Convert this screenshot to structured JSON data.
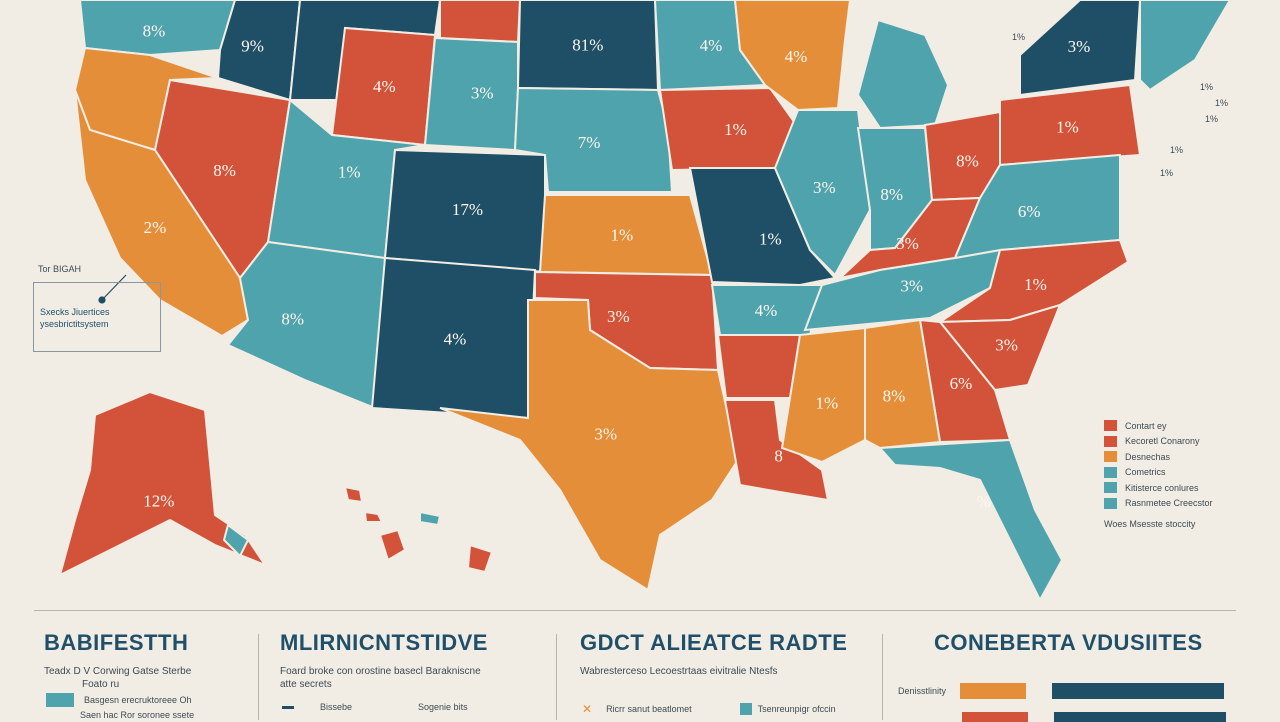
{
  "colors": {
    "teal": "#4ea3ac",
    "navy": "#1e4f67",
    "red": "#d2533a",
    "orange": "#e58e3a",
    "background": "#f1ede4"
  },
  "states": [
    {
      "id": "wa",
      "label": "8%",
      "color": "teal"
    },
    {
      "id": "id",
      "label": "9%",
      "color": "navy"
    },
    {
      "id": "wy",
      "label": "4%",
      "color": "red"
    },
    {
      "id": "nd",
      "label": "81%",
      "color": "navy"
    },
    {
      "id": "mn",
      "label": "4%",
      "color": "teal"
    },
    {
      "id": "wi",
      "label": "4%",
      "color": "orange"
    },
    {
      "id": "or",
      "label": "",
      "color": "orange"
    },
    {
      "id": "nv",
      "label": "8%",
      "color": "red"
    },
    {
      "id": "ca",
      "label": "2%",
      "color": "orange"
    },
    {
      "id": "ut",
      "label": "1%",
      "color": "teal"
    },
    {
      "id": "co",
      "label": "17%",
      "color": "navy"
    },
    {
      "id": "ne",
      "label": "7%",
      "color": "teal"
    },
    {
      "id": "sd",
      "label": "3%",
      "color": "teal"
    },
    {
      "id": "ia",
      "label": "1%",
      "color": "red"
    },
    {
      "id": "ks",
      "label": "1%",
      "color": "orange"
    },
    {
      "id": "mo",
      "label": "1%",
      "color": "navy"
    },
    {
      "id": "il",
      "label": "3%",
      "color": "teal"
    },
    {
      "id": "in",
      "label": "8%",
      "color": "teal"
    },
    {
      "id": "mi",
      "label": "",
      "color": "teal"
    },
    {
      "id": "oh",
      "label": "8%",
      "color": "red"
    },
    {
      "id": "pa",
      "label": "1%",
      "color": "red"
    },
    {
      "id": "ny",
      "label": "3%",
      "color": "navy"
    },
    {
      "id": "az",
      "label": "8%",
      "color": "teal"
    },
    {
      "id": "nm",
      "label": "4%",
      "color": "navy"
    },
    {
      "id": "ok",
      "label": "3%",
      "color": "red"
    },
    {
      "id": "tx",
      "label": "3%",
      "color": "orange"
    },
    {
      "id": "ar",
      "label": "4%",
      "color": "teal"
    },
    {
      "id": "la",
      "label": "8",
      "color": "red"
    },
    {
      "id": "ms",
      "label": "1%",
      "color": "orange"
    },
    {
      "id": "al",
      "label": "8%",
      "color": "orange"
    },
    {
      "id": "ga",
      "label": "6%",
      "color": "red"
    },
    {
      "id": "fl",
      "label": "%",
      "color": "teal"
    },
    {
      "id": "tn",
      "label": "3%",
      "color": "teal"
    },
    {
      "id": "ky",
      "label": "3%",
      "color": "red"
    },
    {
      "id": "va",
      "label": "6%",
      "color": "teal"
    },
    {
      "id": "nc",
      "label": "1%",
      "color": "red"
    },
    {
      "id": "sc",
      "label": "3%",
      "color": "red"
    },
    {
      "id": "ak",
      "label": "12%",
      "color": "red"
    }
  ],
  "callout": {
    "title": "Tor BIGAH",
    "lines": [
      "Sxecks Jiuertices",
      "ysesbrictitsystem"
    ]
  },
  "northeast_labels": [
    "1%",
    "1%",
    "1%",
    "1%",
    "1%",
    "1%"
  ],
  "legend": {
    "items": [
      {
        "label": "Contart ey",
        "color": "red"
      },
      {
        "label": "Kecoretl Conarony",
        "color": "red"
      },
      {
        "label": "Desnechas",
        "color": "orange"
      },
      {
        "label": "Cometrics",
        "color": "teal"
      },
      {
        "label": "Kitisterce conlures",
        "color": "teal"
      },
      {
        "label": "Rasnmetee Creecstor",
        "color": "teal"
      }
    ],
    "note": "Woes Msesste stoccity"
  },
  "panels": [
    {
      "title": "BABIFESTTH",
      "sub": "Teadx D V Corwing Gatse Sterbe",
      "sub2": "Foato ru",
      "rows": [
        "Basgesn erecruktoreee Oh",
        "Saen hac Ror soronee ssete"
      ]
    },
    {
      "title": "MLIRNICNTSTIDVE",
      "sub": "Foard broke con orostine basecl Barakniscne",
      "sub2": "atte secrets",
      "rows": [
        "Bissebe",
        "Sogenie bits"
      ]
    },
    {
      "title": "GDCT ALIEATCE RADTE",
      "sub": "Wabresterceso Lecoestrtaas eivitralie Ntesfs",
      "sub2": "",
      "rows": [
        "Ricrr sanut beatlomet",
        "Tsenreunpigr ofccin"
      ]
    },
    {
      "title": "CONEBERTA VDUSIITES",
      "sub": "",
      "sub2": "",
      "rows": [
        "Denisstlinity",
        ""
      ]
    }
  ]
}
